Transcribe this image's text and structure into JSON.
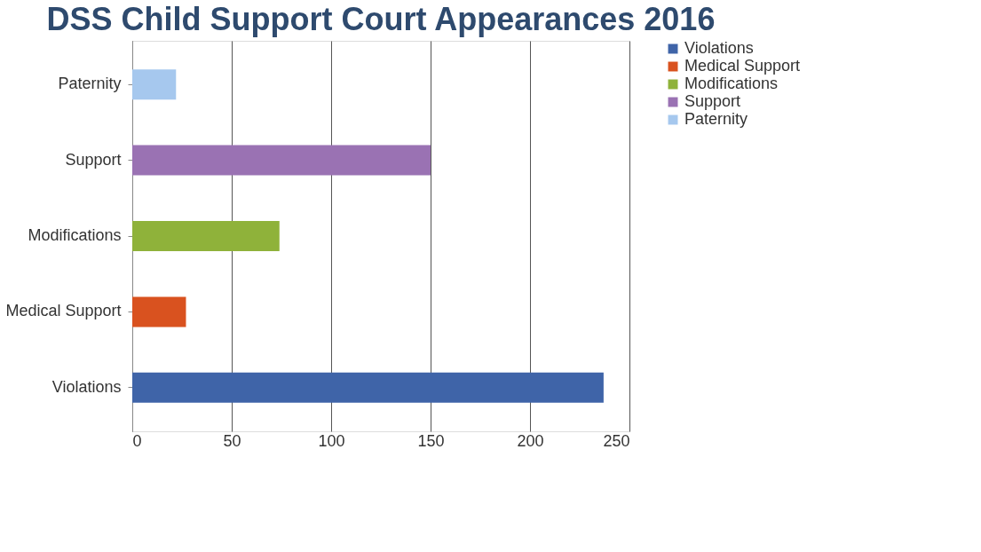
{
  "chart_data": {
    "type": "bar",
    "orientation": "horizontal",
    "title": "DSS Child Support Court Appearances 2016",
    "categories": [
      "Paternity",
      "Support",
      "Modifications",
      "Medical Support",
      "Violations"
    ],
    "series": [
      {
        "name": "Violations",
        "color": "#3f64a8",
        "values": [
          null,
          null,
          null,
          null,
          237
        ]
      },
      {
        "name": "Medical Support",
        "color": "#d9521f",
        "values": [
          null,
          null,
          null,
          27,
          null
        ]
      },
      {
        "name": "Modifications",
        "color": "#8fb23a",
        "values": [
          null,
          null,
          74,
          null,
          null
        ]
      },
      {
        "name": "Support",
        "color": "#9a72b3",
        "values": [
          null,
          150,
          null,
          null,
          null
        ]
      },
      {
        "name": "Paternity",
        "color": "#a6c8ee",
        "values": [
          22,
          null,
          null,
          null,
          null
        ]
      }
    ],
    "xlim": [
      0,
      250
    ],
    "xticks": [
      0,
      50,
      100,
      150,
      200,
      250
    ],
    "grid": "x",
    "legend": "right"
  }
}
